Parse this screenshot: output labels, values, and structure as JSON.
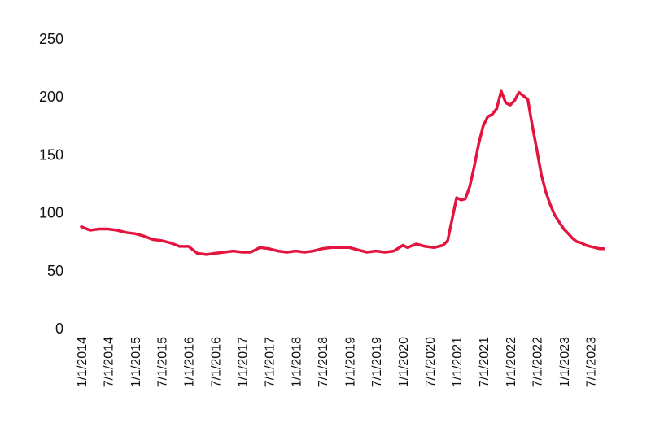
{
  "chart_data": {
    "type": "line",
    "title": "",
    "xlabel": "",
    "ylabel": "",
    "ylim": [
      0,
      250
    ],
    "yticks": [
      0,
      50,
      100,
      150,
      200,
      250
    ],
    "xlim": [
      "2014-01-01",
      "2023-10-01"
    ],
    "x_tick_labels": [
      "1/1/2014",
      "7/1/2014",
      "1/1/2015",
      "7/1/2015",
      "1/1/2016",
      "7/1/2016",
      "1/1/2017",
      "7/1/2017",
      "1/1/2018",
      "7/1/2018",
      "1/1/2019",
      "7/1/2019",
      "1/1/2020",
      "7/1/2020",
      "1/1/2021",
      "7/1/2021",
      "1/1/2022",
      "7/1/2022",
      "1/1/2023",
      "7/1/2023"
    ],
    "grid": false,
    "line_color": "#e3153e",
    "series": [
      {
        "x": [
          "2014-01-01",
          "2014-03-01",
          "2014-05-01",
          "2014-07-01",
          "2014-09-01",
          "2014-11-01",
          "2015-01-01",
          "2015-03-01",
          "2015-05-01",
          "2015-07-01",
          "2015-09-01",
          "2015-11-01",
          "2016-01-01",
          "2016-03-01",
          "2016-05-01",
          "2016-07-01",
          "2016-09-01",
          "2016-11-01",
          "2017-01-01",
          "2017-03-01",
          "2017-05-01",
          "2017-07-01",
          "2017-09-01",
          "2017-11-01",
          "2018-01-01",
          "2018-03-01",
          "2018-05-01",
          "2018-07-01",
          "2018-09-01",
          "2018-11-01",
          "2019-01-01",
          "2019-03-01",
          "2019-05-01",
          "2019-07-01",
          "2019-09-01",
          "2019-11-01",
          "2020-01-01",
          "2020-02-01",
          "2020-04-01",
          "2020-06-01",
          "2020-08-01",
          "2020-10-01",
          "2020-11-01",
          "2021-01-01",
          "2021-02-01",
          "2021-03-01",
          "2021-04-01",
          "2021-05-01",
          "2021-06-01",
          "2021-07-01",
          "2021-08-01",
          "2021-09-01",
          "2021-10-01",
          "2021-11-01",
          "2021-12-01",
          "2022-01-01",
          "2022-02-01",
          "2022-03-01",
          "2022-05-01",
          "2022-06-01",
          "2022-07-01",
          "2022-08-01",
          "2022-09-01",
          "2022-10-01",
          "2022-11-01",
          "2022-12-01",
          "2023-01-01",
          "2023-02-01",
          "2023-03-01",
          "2023-04-01",
          "2023-05-01",
          "2023-06-01",
          "2023-07-01",
          "2023-08-01",
          "2023-09-01",
          "2023-10-01"
        ],
        "values": [
          88,
          85,
          86,
          86,
          85,
          83,
          82,
          80,
          77,
          76,
          74,
          71,
          71,
          65,
          64,
          65,
          66,
          67,
          66,
          66,
          70,
          69,
          67,
          66,
          67,
          66,
          67,
          69,
          70,
          70,
          70,
          68,
          66,
          67,
          66,
          67,
          72,
          70,
          73,
          71,
          70,
          72,
          76,
          113,
          111,
          112,
          123,
          140,
          160,
          175,
          183,
          185,
          190,
          205,
          195,
          193,
          197,
          204,
          198,
          175,
          155,
          133,
          118,
          107,
          98,
          92,
          86,
          82,
          78,
          75,
          74,
          72,
          71,
          70,
          69,
          69
        ]
      }
    ]
  }
}
